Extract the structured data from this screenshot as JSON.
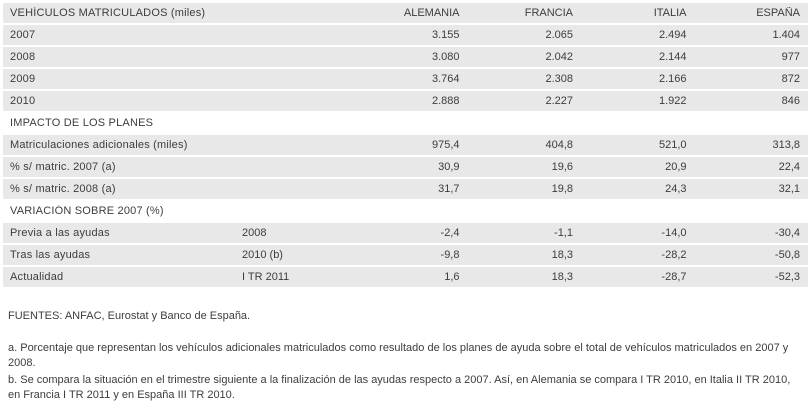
{
  "chart_data": {
    "type": "table",
    "title": "VEHÍCULOS MATRICULADOS (miles)",
    "columns": [
      "ALEMANIA",
      "FRANCIA",
      "ITALIA",
      "ESPAÑA"
    ],
    "rows": [
      {
        "label": "2007",
        "sub": "",
        "values": [
          "3.155",
          "2.065",
          "2.494",
          "1.404"
        ]
      },
      {
        "label": "2008",
        "sub": "",
        "values": [
          "3.080",
          "2.042",
          "2.144",
          "977"
        ]
      },
      {
        "label": "2009",
        "sub": "",
        "values": [
          "3.764",
          "2.308",
          "2.166",
          "872"
        ]
      },
      {
        "label": "2010",
        "sub": "",
        "values": [
          "2.888",
          "2.227",
          "1.922",
          "846"
        ]
      },
      {
        "label": "IMPACTO DE LOS PLANES",
        "sub": "",
        "values": []
      },
      {
        "label": "Matriculaciones adicionales (miles)",
        "sub": "",
        "values": [
          "975,4",
          "404,8",
          "521,0",
          "313,8"
        ]
      },
      {
        "label": "% s/ matric. 2007 (a)",
        "sub": "",
        "values": [
          "30,9",
          "19,6",
          "20,9",
          "22,4"
        ]
      },
      {
        "label": "% s/ matric. 2008 (a)",
        "sub": "",
        "values": [
          "31,7",
          "19,8",
          "24,3",
          "32,1"
        ]
      },
      {
        "label": "VARIACIÓN SOBRE 2007 (%)",
        "sub": "",
        "values": []
      },
      {
        "label": "Previa a las ayudas",
        "sub": "2008",
        "values": [
          "-2,4",
          "-1,1",
          "-14,0",
          "-30,4"
        ]
      },
      {
        "label": "Tras las ayudas",
        "sub": "2010 (b)",
        "values": [
          "-9,8",
          "18,3",
          "-28,2",
          "-50,8"
        ]
      },
      {
        "label": "Actualidad",
        "sub": "I TR 2011",
        "values": [
          "1,6",
          "18,3",
          "-28,7",
          "-52,3"
        ]
      }
    ]
  },
  "footer": {
    "sources": "FUENTES: ANFAC, Eurostat y Banco de España.",
    "note_a": "a. Porcentaje que representan los vehículos adicionales matriculados como resultado de los planes de ayuda sobre el total de vehículos matriculados en 2007 y 2008.",
    "note_b": "b. Se compara la situación en el trimestre siguiente a la finalización de las ayudas respecto a 2007. Así, en Alemania se compara I TR 2010, en Italia II TR 2010, en Francia I TR 2011 y en España III TR 2010."
  },
  "colors": {
    "row_background": "#e8e8e8",
    "page_background": "#ffffff",
    "text": "#3d3d3d"
  }
}
